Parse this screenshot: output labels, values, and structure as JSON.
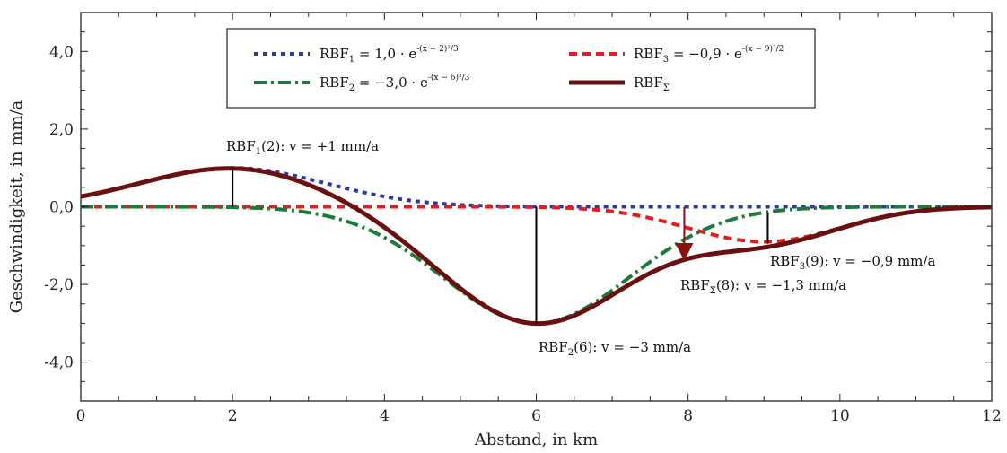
{
  "chart_data": {
    "type": "line",
    "xlabel": "Abstand, in km",
    "ylabel": "Geschwindigkeit, in mm/a",
    "xlim": [
      0,
      12
    ],
    "ylim": [
      -5,
      5
    ],
    "x_ticks": [
      0,
      2,
      4,
      6,
      8,
      10,
      12
    ],
    "x_tick_labels": [
      "0",
      "2",
      "4",
      "6",
      "8",
      "10",
      "12"
    ],
    "y_ticks": [
      4,
      2,
      0,
      -2,
      -4
    ],
    "y_tick_labels": [
      "4,0",
      "2,0",
      "0,0",
      "-2,0",
      "-4,0"
    ],
    "grid": false,
    "legend_position": "top",
    "series": [
      {
        "name": "RBF₁",
        "legend_label": {
          "base": "RBF",
          "sub": "1",
          "formula": "= 1,0 · e",
          "exponent": "-(x − 2)²/3"
        },
        "amplitude": 1.0,
        "center": 2,
        "width": 3,
        "color": "#2e3a9e",
        "style": "dotted",
        "x": [
          0,
          1,
          2,
          3,
          4,
          5,
          6,
          7,
          8,
          9,
          10,
          11,
          12
        ],
        "values": [
          0.26,
          0.72,
          1.0,
          0.72,
          0.26,
          0.05,
          0.0,
          0.0,
          0.0,
          0.0,
          0.0,
          0.0,
          0.0
        ]
      },
      {
        "name": "RBF₂",
        "legend_label": {
          "base": "RBF",
          "sub": "2",
          "formula": "= −3,0 · e",
          "exponent": "-(x − 6)²/3"
        },
        "amplitude": -3.0,
        "center": 6,
        "width": 3,
        "color": "#1e7a3a",
        "style": "dash-dot",
        "x": [
          0,
          1,
          2,
          3,
          4,
          5,
          6,
          7,
          8,
          9,
          10,
          11,
          12
        ],
        "values": [
          0.0,
          0.0,
          -0.01,
          -0.15,
          -0.79,
          -2.15,
          -3.0,
          -2.15,
          -0.79,
          -0.15,
          -0.01,
          0.0,
          0.0
        ]
      },
      {
        "name": "RBF₃",
        "legend_label": {
          "base": "RBF",
          "sub": "3",
          "formula": "= −0,9 · e",
          "exponent": "-(x − 9)²/2"
        },
        "amplitude": -0.9,
        "center": 9,
        "width": 2,
        "color": "#e02020",
        "style": "dash",
        "x": [
          0,
          1,
          2,
          3,
          4,
          5,
          6,
          7,
          8,
          9,
          10,
          11,
          12
        ],
        "values": [
          0.0,
          0.0,
          0.0,
          0.0,
          0.0,
          0.0,
          -0.01,
          -0.12,
          -0.55,
          -0.9,
          -0.55,
          -0.12,
          -0.01
        ]
      },
      {
        "name": "RBFΣ",
        "legend_label": {
          "base": "RBF",
          "sub": "Σ",
          "formula": "",
          "exponent": ""
        },
        "color": "#6b1010",
        "style": "solid",
        "x": [
          0,
          1,
          2,
          3,
          4,
          5,
          6,
          7,
          8,
          9,
          10,
          11,
          12
        ],
        "values": [
          0.26,
          0.72,
          0.99,
          0.57,
          -0.53,
          -2.1,
          -3.01,
          -2.27,
          -1.34,
          -1.05,
          -0.56,
          -0.12,
          -0.01
        ]
      }
    ],
    "annotations": [
      {
        "label_base": "RBF",
        "label_sub": "1",
        "label_rest": "(2): v = +1 mm/a",
        "x": 2,
        "y_from": 0,
        "y_to": 1.0,
        "arrow": false
      },
      {
        "label_base": "RBF",
        "label_sub": "2",
        "label_rest": "(6): v = −3 mm/a",
        "x": 6,
        "y_from": 0,
        "y_to": -3.0,
        "arrow": false
      },
      {
        "label_base": "RBF",
        "label_sub": "3",
        "label_rest": "(9): v = −0,9 mm/a",
        "x": 9.05,
        "y_from": -0.15,
        "y_to": -0.95,
        "arrow": false
      },
      {
        "label_base": "RBF",
        "label_sub": "Σ",
        "label_rest": "(8): v = −1,3 mm/a",
        "x": 7.95,
        "y_from": 0,
        "y_to": -1.35,
        "arrow": true
      }
    ]
  }
}
